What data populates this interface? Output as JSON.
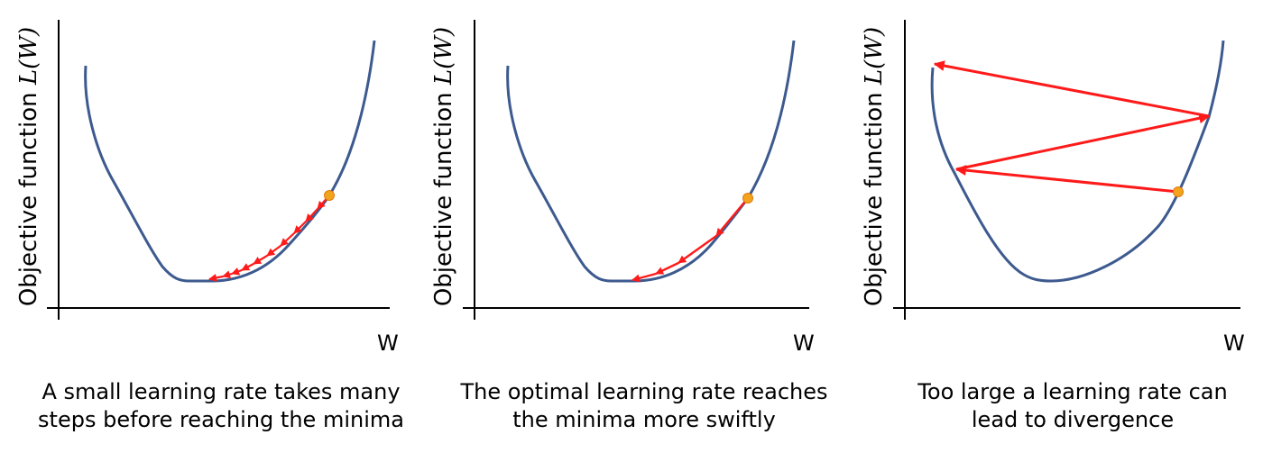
{
  "panels": [
    {
      "y_label": "Objective function ",
      "y_label_math": "L(W)",
      "x_label": "W",
      "caption_lines": [
        "A small learning rate takes many",
        "steps before reaching the minima"
      ]
    },
    {
      "y_label": "Objective function ",
      "y_label_math": "L(W)",
      "x_label": "W",
      "caption_lines": [
        "The optimal learning rate reaches",
        "the minima more swiftly"
      ]
    },
    {
      "y_label": "Objective function ",
      "y_label_math": "L(W)",
      "x_label": "W",
      "caption_lines": [
        "Too large a learning rate can",
        "lead to divergence"
      ]
    }
  ],
  "colors": {
    "curve": "#3d5a8f",
    "step_arrow": "#ff1a1a",
    "start_point": "#f2a41c",
    "axis": "#000000"
  }
}
